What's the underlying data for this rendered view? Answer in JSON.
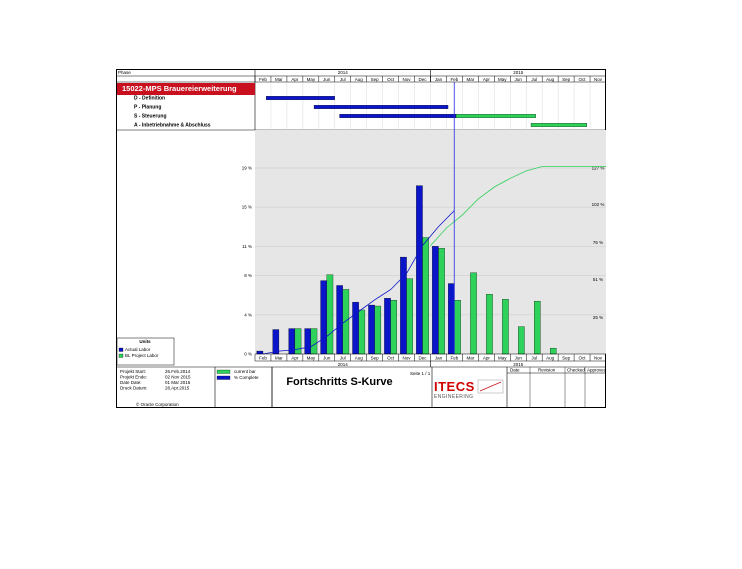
{
  "header": {
    "phase_label": "Phase",
    "years": [
      "2014",
      "2015"
    ],
    "months": [
      "Feb",
      "Mar",
      "Apr",
      "May",
      "Jun",
      "Jul",
      "Aug",
      "Sep",
      "Oct",
      "Nov",
      "Dec",
      "Jan",
      "Feb",
      "Mar",
      "Apr",
      "May",
      "Jun",
      "Jul",
      "Aug",
      "Sep",
      "Oct",
      "Nov"
    ]
  },
  "project": {
    "banner": "15022-MPS  Brauereierweiterung",
    "phases": [
      {
        "label": "D - Definition",
        "bars": [
          {
            "start": 0.7,
            "end": 5.0,
            "color": "blue"
          }
        ]
      },
      {
        "label": "P - Planung",
        "bars": [
          {
            "start": 3.7,
            "end": 12.1,
            "color": "blue"
          }
        ]
      },
      {
        "label": "S - Steuerung",
        "bars": [
          {
            "start": 5.3,
            "end": 12.6,
            "color": "blue"
          },
          {
            "start": 12.6,
            "end": 17.6,
            "color": "green"
          }
        ]
      },
      {
        "label": "A - Inbetriebnahme & Abschluss",
        "bars": [
          {
            "start": 17.3,
            "end": 20.8,
            "color": "green"
          }
        ]
      }
    ]
  },
  "chart_data": {
    "type": "bar",
    "categories": [
      "Feb",
      "Mar",
      "Apr",
      "May",
      "Jun",
      "Jul",
      "Aug",
      "Sep",
      "Oct",
      "Nov",
      "Dec",
      "Jan",
      "Feb",
      "Mar",
      "Apr",
      "May",
      "Jun",
      "Jul",
      "Aug",
      "Sep",
      "Oct",
      "Nov"
    ],
    "left_ticks": [
      "0 %",
      "4 %",
      "8 %",
      "11 %",
      "15 %",
      "19 %"
    ],
    "right_ticks": [
      "25 %",
      "51 %",
      "76 %",
      "102 %",
      "127 %"
    ],
    "ylim": [
      0,
      19
    ],
    "y2lim": [
      0,
      127
    ],
    "series": [
      {
        "name": "Actual Labor",
        "color": "#0a14c8",
        "values": [
          0.3,
          2.5,
          2.6,
          2.6,
          7.5,
          7.0,
          5.3,
          5.0,
          5.7,
          9.9,
          17.2,
          11.0,
          7.2,
          0,
          0,
          0,
          0,
          0,
          0,
          0,
          0,
          0
        ]
      },
      {
        "name": "BL Project Labor",
        "color": "#2ed15a",
        "values": [
          0,
          0,
          2.6,
          2.6,
          8.1,
          6.6,
          4.5,
          4.9,
          5.5,
          7.7,
          11.9,
          10.8,
          5.5,
          8.3,
          6.1,
          5.6,
          2.8,
          5.4,
          0.6,
          0,
          0,
          0
        ]
      }
    ],
    "curves": [
      {
        "name": "% Complete",
        "color": "#0a14c8",
        "points": [
          [
            0,
            0
          ],
          [
            1,
            2
          ],
          [
            2,
            3
          ],
          [
            3,
            5
          ],
          [
            4,
            12
          ],
          [
            5,
            21
          ],
          [
            6,
            29
          ],
          [
            7,
            37
          ],
          [
            8,
            44
          ],
          [
            9,
            55
          ],
          [
            10,
            74
          ],
          [
            11,
            87
          ],
          [
            12,
            98
          ]
        ]
      },
      {
        "name": "current line",
        "color": "#2ed15a",
        "points": [
          [
            10.5,
            74
          ],
          [
            11.5,
            86
          ],
          [
            12.5,
            95
          ],
          [
            13.5,
            106
          ],
          [
            14.5,
            114
          ],
          [
            15.5,
            120
          ],
          [
            16.5,
            125
          ],
          [
            17.5,
            128
          ],
          [
            18.5,
            128
          ],
          [
            19.5,
            128
          ],
          [
            20.5,
            128
          ],
          [
            21.5,
            128
          ]
        ]
      }
    ],
    "data_date_index": 12.3
  },
  "legend": {
    "title": "Units",
    "items": [
      {
        "label": "Actual Labor",
        "color": "#0a14c8"
      },
      {
        "label": "BL Project Labor",
        "color": "#2ed15a"
      }
    ]
  },
  "footer": {
    "info": [
      {
        "label": "Projekt Start:",
        "value": "26.Feb.2014"
      },
      {
        "label": "Projekt Ende:",
        "value": "02 Nov 2015"
      },
      {
        "label": "Date Date:",
        "value": "01 Mar 2015"
      },
      {
        "label": "Druck Datum:",
        "value": "28.Apr.2015"
      }
    ],
    "copyright": "© Oracle Corporation",
    "key": [
      {
        "label": "current bar",
        "color": "#2ed15a"
      },
      {
        "label": "% Complete",
        "color": "#0a14c8"
      }
    ],
    "title": "Fortschritts S-Kurve",
    "page": "Seite 1 / 1",
    "logo_text": "ITECS",
    "logo_sub": "ENGINEERING",
    "revision_headers": [
      "Date",
      "Revision",
      "Checked",
      "Approved"
    ]
  }
}
